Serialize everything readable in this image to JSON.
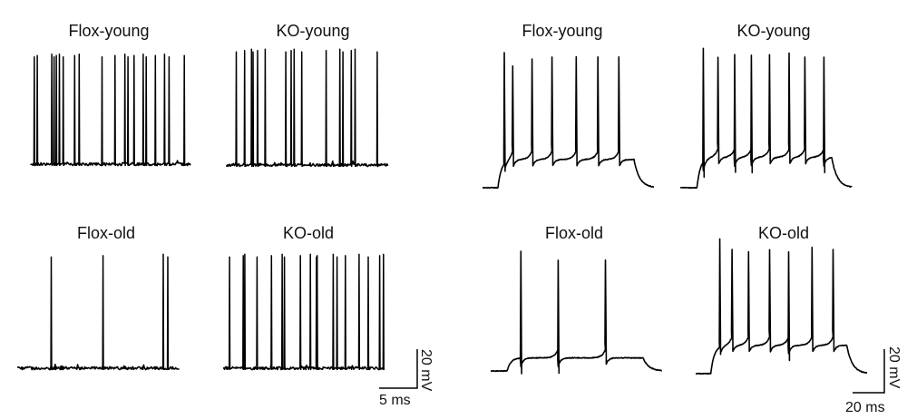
{
  "spontaneous": {
    "units": {
      "time": "ms",
      "voltage": "mV"
    },
    "scale_bar": {
      "voltage_label": "20 mV",
      "time_label": "5 ms",
      "voltage_value": 20,
      "time_value": 5
    },
    "panels": [
      {
        "title": "Flox-young",
        "duration": 21.0,
        "peak_mV": 55,
        "spike_times": [
          0.4,
          0.8,
          2.7,
          3.0,
          3.3,
          3.7,
          4.2,
          5.7,
          6.3,
          9.3,
          11.0,
          12.3,
          12.7,
          13.5,
          14.7,
          15.1,
          16.3,
          17.5,
          18.1,
          20.1
        ]
      },
      {
        "title": "KO-young",
        "duration": 21.2,
        "peak_mV": 58,
        "spike_times": [
          1.2,
          2.3,
          3.2,
          3.4,
          4.0,
          5.0,
          7.7,
          8.4,
          8.8,
          9.8,
          13.0,
          14.8,
          15.2,
          16.3,
          16.8,
          19.7
        ]
      },
      {
        "title": "Flox-old",
        "duration": 21.2,
        "peak_mV": 57,
        "spike_times": [
          4.3,
          11.1,
          19.0,
          19.6
        ]
      },
      {
        "title": "KO-old",
        "duration": 21.2,
        "peak_mV": 57,
        "spike_times": [
          0.8,
          2.6,
          2.8,
          4.4,
          6.3,
          7.7,
          8.0,
          10.1,
          11.4,
          12.2,
          12.3,
          14.4,
          14.9,
          16.0,
          17.8,
          19.0,
          20.5,
          21.0
        ]
      }
    ]
  },
  "evoked": {
    "units": {
      "time": "ms",
      "voltage": "mV"
    },
    "scale_bar": {
      "voltage_label": "20 mV",
      "time_label": "20 ms",
      "voltage_value": 20,
      "time_value": 20
    },
    "panels": [
      {
        "title": "Flox-young",
        "duration": 108,
        "step_on": 9.7,
        "step_off": 95.4,
        "plateau_mV": 13,
        "spikes": [
          {
            "t": 13.7,
            "peak": 62
          },
          {
            "t": 19.0,
            "peak": 56
          },
          {
            "t": 31.2,
            "peak": 59
          },
          {
            "t": 43.8,
            "peak": 60
          },
          {
            "t": 59.0,
            "peak": 60
          },
          {
            "t": 72.7,
            "peak": 60
          },
          {
            "t": 85.9,
            "peak": 60
          }
        ]
      },
      {
        "title": "KO-young",
        "duration": 108,
        "step_on": 10.5,
        "step_off": 95.4,
        "plateau_mV": 14,
        "spikes": [
          {
            "t": 14.5,
            "peak": 64
          },
          {
            "t": 23.8,
            "peak": 60
          },
          {
            "t": 34.3,
            "peak": 61
          },
          {
            "t": 44.8,
            "peak": 61
          },
          {
            "t": 56.2,
            "peak": 61
          },
          {
            "t": 68.6,
            "peak": 62
          },
          {
            "t": 78.5,
            "peak": 60
          },
          {
            "t": 90.5,
            "peak": 60
          }
        ]
      },
      {
        "title": "Flox-old",
        "duration": 108,
        "step_on": 10.4,
        "step_off": 96,
        "plateau_mV": 6,
        "spikes": [
          {
            "t": 19.0,
            "peak": 55
          },
          {
            "t": 42.5,
            "peak": 51
          },
          {
            "t": 72.3,
            "peak": 51
          }
        ]
      },
      {
        "title": "KO-old",
        "duration": 108,
        "step_on": 9.5,
        "step_off": 95.2,
        "plateau_mV": 13,
        "spikes": [
          {
            "t": 15.2,
            "peak": 62
          },
          {
            "t": 22.9,
            "peak": 57
          },
          {
            "t": 33.3,
            "peak": 56
          },
          {
            "t": 46.6,
            "peak": 57
          },
          {
            "t": 58.6,
            "peak": 56
          },
          {
            "t": 73.3,
            "peak": 58
          },
          {
            "t": 86.6,
            "peak": 57
          }
        ]
      }
    ]
  }
}
